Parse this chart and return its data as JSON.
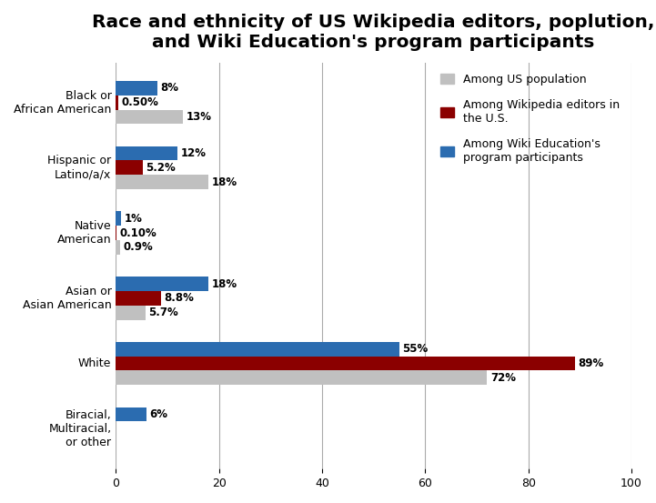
{
  "title": "Race and ethnicity of US Wikipedia editors, poplution,\nand Wiki Education's program participants",
  "categories": [
    "Black or\nAfrican American",
    "Hispanic or\nLatino/a/x",
    "Native\nAmerican",
    "Asian or\nAsian American",
    "White",
    "Biracial,\nMultiracial,\nor other"
  ],
  "series": {
    "population": [
      13,
      18,
      0.9,
      5.7,
      72,
      0
    ],
    "editors": [
      0.5,
      5.2,
      0.1,
      8.8,
      89,
      0
    ],
    "participants": [
      8,
      12,
      1,
      18,
      55,
      6
    ]
  },
  "labels": {
    "population": [
      "13%",
      "18%",
      "0.9%",
      "5.7%",
      "72%",
      ""
    ],
    "editors": [
      "0.50%",
      "5.2%",
      "0.10%",
      "8.8%",
      "89%",
      ""
    ],
    "participants": [
      "8%",
      "12%",
      "1%",
      "18%",
      "55%",
      "6%"
    ]
  },
  "colors": {
    "population": "#c0c0c0",
    "editors": "#8b0000",
    "participants": "#2b6cb0"
  },
  "legend_labels": [
    "Among US population",
    "Among Wikipedia editors in\nthe U.S.",
    "Among Wiki Education's\nprogram participants"
  ],
  "xlim": [
    0,
    100
  ],
  "bar_height": 0.22,
  "background_color": "#ffffff",
  "title_fontsize": 14.5,
  "label_fontsize": 8.5,
  "tick_fontsize": 9,
  "legend_fontsize": 9
}
